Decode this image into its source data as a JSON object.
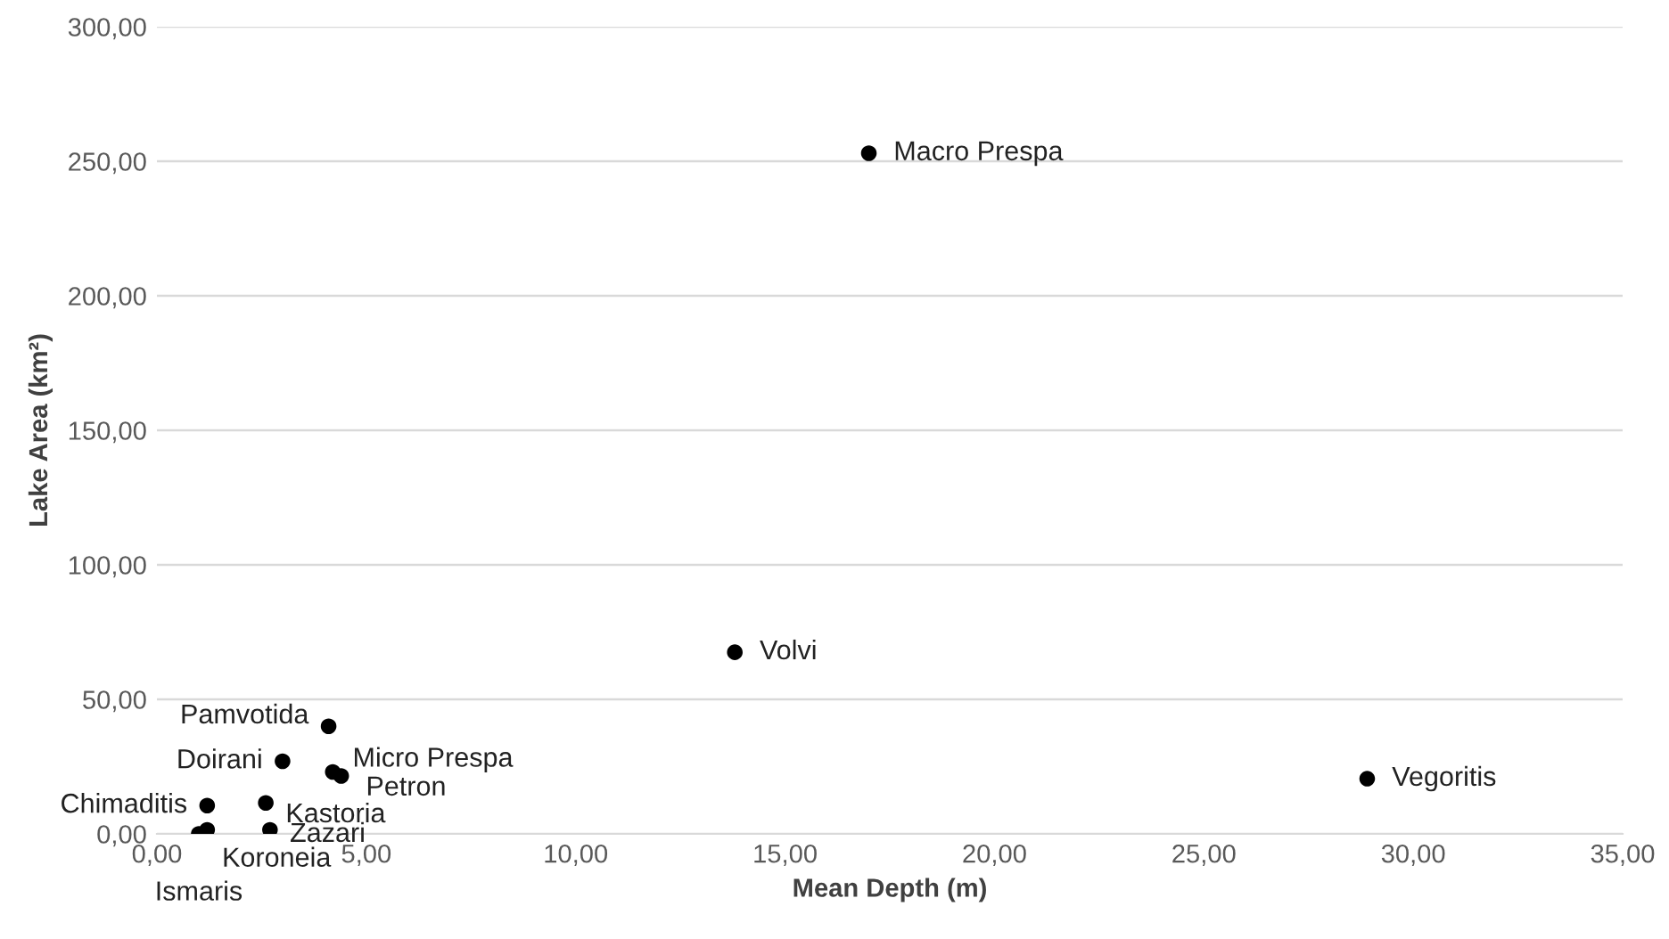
{
  "chart_data": {
    "type": "scatter",
    "xlabel": "Mean Depth (m)",
    "ylabel": "Lake Area (km²)",
    "x": [
      17.0,
      13.8,
      28.9,
      4.1,
      3.0,
      4.2,
      4.4,
      1.2,
      2.6,
      2.7,
      1.0,
      1.2
    ],
    "series": [
      {
        "color": "#000000",
        "values": [
          253,
          67.5,
          20.5,
          40,
          27,
          23,
          21.5,
          10.5,
          11.5,
          1.5,
          0,
          1.5
        ]
      }
    ],
    "annotations": [
      {
        "text": "Macro Prespa",
        "x": 17.0,
        "y": 253
      },
      {
        "text": "Volvi",
        "x": 13.8,
        "y": 67.5
      },
      {
        "text": "Vegoritis",
        "x": 28.9,
        "y": 20.5
      },
      {
        "text": "Pamvotida",
        "x": 4.1,
        "y": 40
      },
      {
        "text": "Doirani",
        "x": 3.0,
        "y": 27
      },
      {
        "text": "Micro Prespa",
        "x": 4.2,
        "y": 23
      },
      {
        "text": "Petron",
        "x": 4.4,
        "y": 21.5
      },
      {
        "text": "Chimaditis",
        "x": 1.2,
        "y": 10.5
      },
      {
        "text": "Kastoria",
        "x": 2.6,
        "y": 11.5
      },
      {
        "text": "Zazari",
        "x": 2.7,
        "y": 1.5
      },
      {
        "text": "Ismaris",
        "x": 1.0,
        "y": 0
      },
      {
        "text": "Koroneia",
        "x": 1.2,
        "y": 1.5
      }
    ],
    "xlim": [
      0,
      35
    ],
    "ylim": [
      0,
      300
    ],
    "xticks": [
      {
        "value": 0,
        "label": "0,00"
      },
      {
        "value": 5,
        "label": "5,00"
      },
      {
        "value": 10,
        "label": "10,00"
      },
      {
        "value": 15,
        "label": "15,00"
      },
      {
        "value": 20,
        "label": "20,00"
      },
      {
        "value": 25,
        "label": "25,00"
      },
      {
        "value": 30,
        "label": "30,00"
      },
      {
        "value": 35,
        "label": "35,00"
      }
    ],
    "yticks": [
      {
        "value": 0,
        "label": "0,00"
      },
      {
        "value": 50,
        "label": "50,00"
      },
      {
        "value": 100,
        "label": "100,00"
      },
      {
        "value": 150,
        "label": "150,00"
      },
      {
        "value": 200,
        "label": "200,00"
      },
      {
        "value": 250,
        "label": "250,00"
      },
      {
        "value": 300,
        "label": "300,00"
      }
    ],
    "grid": "y",
    "marker": "circle"
  }
}
